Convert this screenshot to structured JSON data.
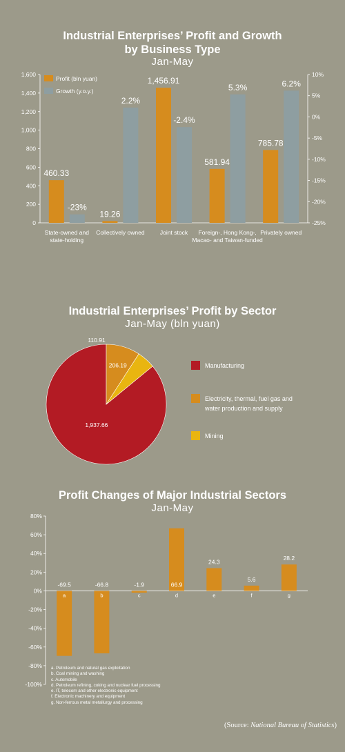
{
  "colors": {
    "background": "#9c9a8a",
    "profit_bar": "#d68c1e",
    "growth_bar": "#8e9ea1",
    "manufacturing": "#b31b24",
    "electricity": "#d68c1e",
    "mining": "#e9b510",
    "axis_line": "#ffffff"
  },
  "chart1": {
    "title_line1": "Industrial Enterprises’ Profit and Growth",
    "title_line2": "by Business Type",
    "subtitle": "Jan-May"
  },
  "chart2": {
    "title": "Industrial Enterprises’ Profit by Sector",
    "subtitle": "Jan-May (bln yuan)"
  },
  "chart3": {
    "title": "Profit Changes of Major Industrial Sectors",
    "subtitle": "Jan-May"
  },
  "footnotes": [
    "a. Petroleum and natural gas exploitation",
    "b. Coal mining and washing",
    "c. Automobile",
    "d. Petroleum refining, coking and nuclear fuel processing",
    "e. IT, telecom and other electronic equipment",
    "f. Electronic machinery and equipment",
    "g. Non-ferrous metal metallurgy and processing"
  ],
  "source": {
    "prefix": "(Source: ",
    "name": "National Bureau of Statistics",
    "suffix": ")"
  },
  "chart_data": [
    {
      "type": "bar",
      "categories": [
        [
          "State-owned and",
          "state-holding"
        ],
        [
          "Collectively owned"
        ],
        [
          "Joint stock"
        ],
        [
          "Foreign-, Hong Kong-,",
          "Macao- and Taiwan-funded"
        ],
        [
          "Privately owned"
        ]
      ],
      "series": [
        {
          "name": "Profit (bln yuan)",
          "axis": "left",
          "values": [
            460.33,
            19.26,
            1456.91,
            581.94,
            785.78
          ],
          "labels": [
            "460.33",
            "19.26",
            "1,456.91",
            "581.94",
            "785.78"
          ]
        },
        {
          "name": "Growth (y.o.y.)",
          "axis": "right",
          "values": [
            -23,
            2.2,
            -2.4,
            5.3,
            6.2
          ],
          "labels": [
            "-23%",
            "2.2%",
            "-2.4%",
            "5.3%",
            "6.2%"
          ]
        }
      ],
      "y_left": {
        "ylim": [
          0,
          1600
        ],
        "ticks": [
          0,
          200,
          400,
          600,
          800,
          1000,
          1200,
          1400,
          1600
        ],
        "tick_labels": [
          "0",
          "200",
          "400",
          "600",
          "800",
          "1,000",
          "1,200",
          "1,400",
          "1,600"
        ]
      },
      "y_right": {
        "ylim": [
          -25,
          10
        ],
        "ticks": [
          10,
          5,
          0,
          -5,
          -10,
          -15,
          -20,
          -25
        ],
        "tick_labels": [
          "10%",
          "5%",
          "0%",
          "-5%",
          "-10%",
          "-15%",
          "-20%",
          "-25%"
        ]
      },
      "legend": "top-left"
    },
    {
      "type": "pie",
      "labels": [
        "Manufacturing",
        "Electricity, thermal, fuel gas and water production and supply",
        "Mining"
      ],
      "legend_lines": [
        [
          "Manufacturing"
        ],
        [
          "Electricity, thermal, fuel gas and",
          "water production and supply"
        ],
        [
          "Mining"
        ]
      ],
      "values": [
        1937.66,
        206.19,
        110.91
      ],
      "value_labels": [
        "1,937.66",
        "206.19",
        "110.91"
      ],
      "legend": "right"
    },
    {
      "type": "bar",
      "categories": [
        "a",
        "b",
        "c",
        "d",
        "e",
        "f",
        "g"
      ],
      "values": [
        -69.5,
        -66.8,
        -1.9,
        66.9,
        24.3,
        5.6,
        28.2
      ],
      "labels": [
        "-69.5",
        "-66.8",
        "-1.9",
        "66.9",
        "24.3",
        "5.6",
        "28.2"
      ],
      "ylim": [
        -100,
        80
      ],
      "ticks": [
        80,
        60,
        40,
        20,
        0,
        -20,
        -40,
        -60,
        -80,
        -100
      ],
      "tick_labels": [
        "80%",
        "60%",
        "40%",
        "20%",
        "0%",
        "-20%",
        "-40%",
        "-60%",
        "-80%",
        "-100%"
      ]
    }
  ]
}
